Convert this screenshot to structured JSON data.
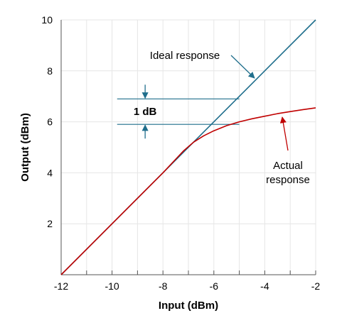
{
  "chart_data": {
    "type": "line",
    "xlabel": "Input (dBm)",
    "ylabel": "Output (dBm)",
    "xlim": [
      -12,
      -2
    ],
    "ylim": [
      0,
      10
    ],
    "x_ticks": [
      -12,
      -10,
      -8,
      -6,
      -4,
      -2
    ],
    "y_ticks": [
      2,
      4,
      6,
      8,
      10
    ],
    "grid": true,
    "colors": {
      "ideal": "#1f6e8c",
      "actual": "#c00000",
      "annotation": "#1f6e8c"
    },
    "series": [
      {
        "name": "Ideal response",
        "x": [
          -12,
          -2
        ],
        "y": [
          0,
          10
        ]
      },
      {
        "name": "Actual response",
        "x": [
          -12,
          -10,
          -8,
          -7.2,
          -6.8,
          -6.4,
          -6,
          -5.5,
          -5,
          -4.5,
          -4,
          -3.5,
          -3,
          -2.5,
          -2
        ],
        "y": [
          0,
          2,
          4,
          4.85,
          5.2,
          5.45,
          5.65,
          5.85,
          6.0,
          6.12,
          6.22,
          6.32,
          6.4,
          6.48,
          6.55
        ]
      }
    ],
    "annotations": {
      "ideal_label": "Ideal response",
      "actual_label": "Actual\nresponse",
      "compression_label": "1 dB",
      "compression_levels": [
        6.9,
        5.9
      ]
    }
  }
}
